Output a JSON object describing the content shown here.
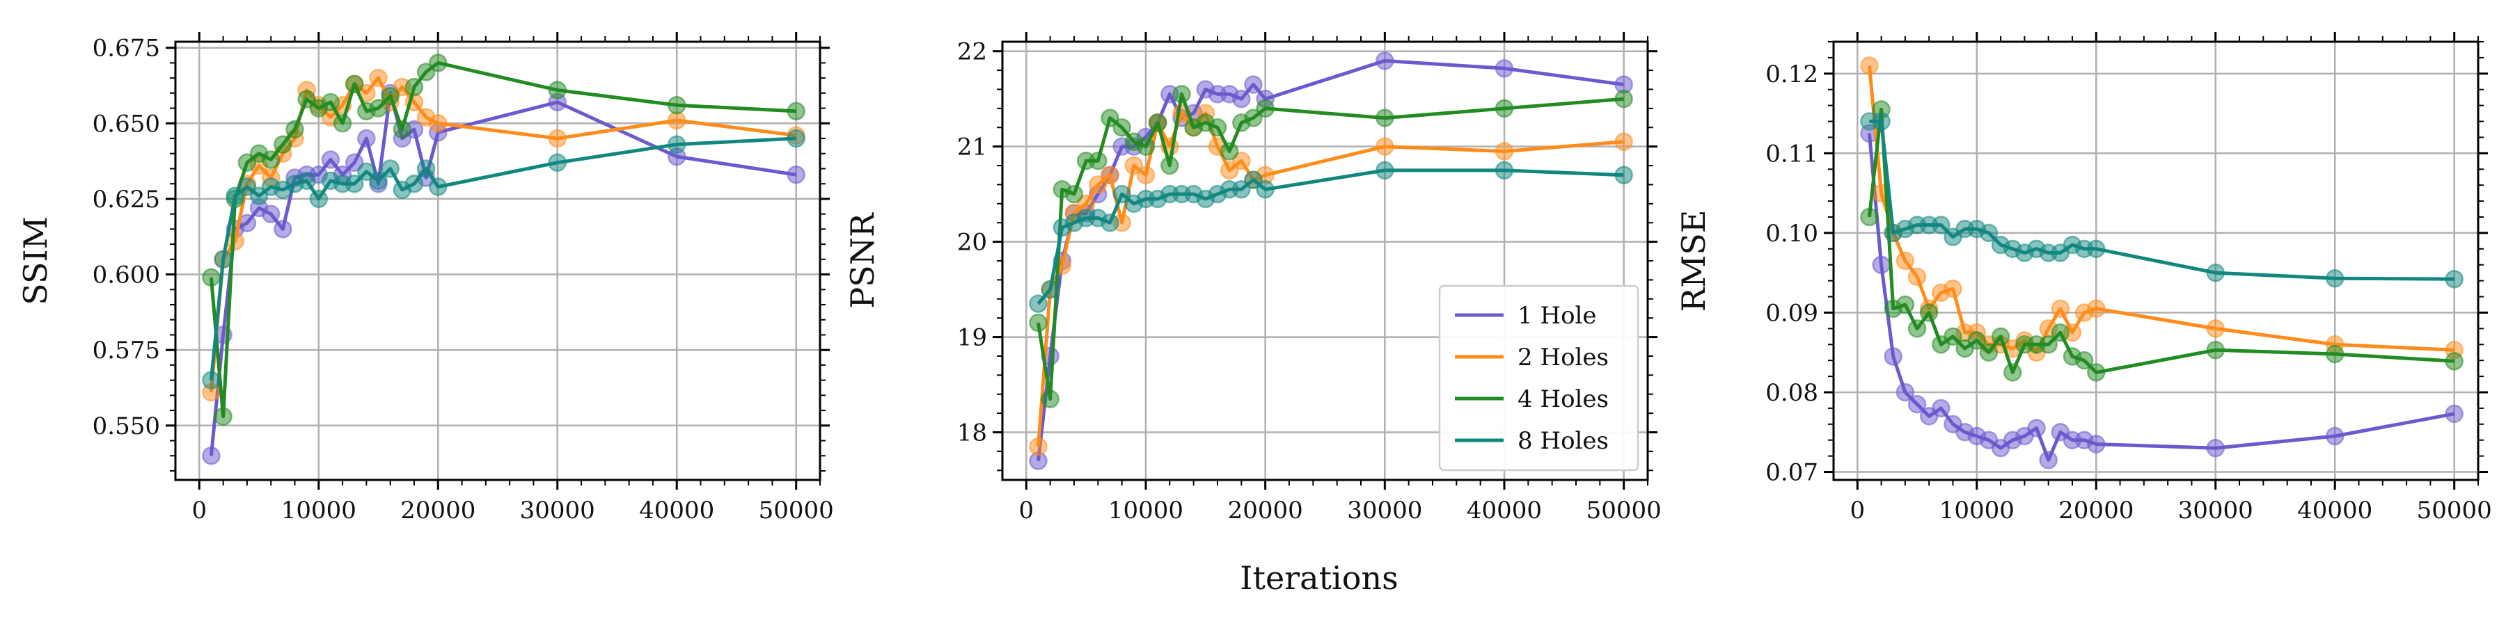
{
  "figure": {
    "shared_xlabel": "Iterations"
  },
  "colors": {
    "1 Hole": "#6a5acd",
    "2 Holes": "#ff8c1a",
    "4 Holes": "#228b22",
    "8 Holes": "#11877f"
  },
  "chart_data": [
    {
      "type": "line",
      "ylabel": "SSIM",
      "xlabel": "",
      "xlim": [
        -2000,
        52000
      ],
      "ylim": [
        0.532,
        0.677
      ],
      "x_ticks": [
        0,
        10000,
        20000,
        30000,
        40000,
        50000
      ],
      "y_ticks": [
        0.55,
        0.575,
        0.6,
        0.625,
        0.65,
        0.675
      ],
      "y_tick_labels": [
        "0.550",
        "0.575",
        "0.600",
        "0.625",
        "0.650",
        "0.675"
      ],
      "grid": true,
      "legend": null,
      "x": [
        1000,
        2000,
        3000,
        4000,
        5000,
        6000,
        7000,
        8000,
        9000,
        10000,
        11000,
        12000,
        13000,
        14000,
        15000,
        16000,
        17000,
        18000,
        19000,
        20000,
        30000,
        40000,
        50000
      ],
      "series": [
        {
          "name": "1 Hole",
          "values": [
            0.54,
            0.58,
            0.615,
            0.617,
            0.622,
            0.62,
            0.615,
            0.632,
            0.633,
            0.633,
            0.638,
            0.633,
            0.637,
            0.645,
            0.63,
            0.66,
            0.645,
            0.648,
            0.632,
            0.647,
            0.657,
            0.639,
            0.633
          ]
        },
        {
          "name": "2 Holes",
          "values": [
            0.561,
            0.605,
            0.611,
            0.63,
            0.636,
            0.632,
            0.64,
            0.645,
            0.661,
            0.656,
            0.652,
            0.656,
            0.663,
            0.66,
            0.665,
            0.657,
            0.662,
            0.657,
            0.652,
            0.65,
            0.645,
            0.651,
            0.646
          ]
        },
        {
          "name": "4 Holes",
          "values": [
            0.599,
            0.553,
            0.625,
            0.637,
            0.64,
            0.638,
            0.643,
            0.648,
            0.658,
            0.655,
            0.657,
            0.65,
            0.663,
            0.654,
            0.655,
            0.659,
            0.648,
            0.662,
            0.667,
            0.67,
            0.661,
            0.656,
            0.654
          ]
        },
        {
          "name": "8 Holes",
          "values": [
            0.565,
            0.605,
            0.626,
            0.629,
            0.626,
            0.629,
            0.628,
            0.63,
            0.631,
            0.625,
            0.631,
            0.63,
            0.63,
            0.634,
            0.631,
            0.635,
            0.628,
            0.63,
            0.635,
            0.629,
            0.637,
            0.643,
            0.645
          ]
        }
      ]
    },
    {
      "type": "line",
      "ylabel": "PSNR",
      "xlabel": "",
      "xlim": [
        -2000,
        52000
      ],
      "ylim": [
        17.5,
        22.1
      ],
      "x_ticks": [
        0,
        10000,
        20000,
        30000,
        40000,
        50000
      ],
      "y_ticks": [
        18,
        19,
        20,
        21,
        22
      ],
      "y_tick_labels": [
        "18",
        "19",
        "20",
        "21",
        "22"
      ],
      "grid": true,
      "legend": "bottom-right",
      "x": [
        1000,
        2000,
        3000,
        4000,
        5000,
        6000,
        7000,
        8000,
        9000,
        10000,
        11000,
        12000,
        13000,
        14000,
        15000,
        16000,
        17000,
        18000,
        19000,
        20000,
        30000,
        40000,
        50000
      ],
      "series": [
        {
          "name": "1 Hole",
          "values": [
            17.7,
            18.8,
            19.8,
            20.3,
            20.3,
            20.5,
            20.7,
            21.0,
            21.0,
            21.1,
            21.25,
            21.55,
            21.3,
            21.35,
            21.6,
            21.55,
            21.55,
            21.5,
            21.65,
            21.5,
            21.9,
            21.82,
            21.65
          ]
        },
        {
          "name": "2 Holes",
          "values": [
            17.85,
            19.5,
            19.75,
            20.3,
            20.4,
            20.6,
            20.7,
            20.2,
            20.8,
            20.7,
            21.25,
            21.0,
            21.35,
            21.2,
            21.35,
            21.0,
            20.75,
            20.85,
            20.65,
            20.7,
            21.0,
            20.95,
            21.05
          ]
        },
        {
          "name": "4 Holes",
          "values": [
            19.15,
            18.35,
            20.55,
            20.5,
            20.85,
            20.85,
            21.3,
            21.2,
            21.05,
            21.0,
            21.25,
            20.8,
            21.55,
            21.2,
            21.25,
            21.2,
            20.95,
            21.25,
            21.3,
            21.4,
            21.3,
            21.4,
            21.5
          ]
        },
        {
          "name": "8 Holes",
          "values": [
            19.35,
            19.5,
            20.15,
            20.2,
            20.25,
            20.25,
            20.2,
            20.5,
            20.4,
            20.45,
            20.45,
            20.5,
            20.5,
            20.5,
            20.45,
            20.5,
            20.55,
            20.55,
            20.65,
            20.55,
            20.75,
            20.75,
            20.7
          ]
        }
      ]
    },
    {
      "type": "line",
      "ylabel": "RMSE",
      "xlabel": "",
      "xlim": [
        -2000,
        52000
      ],
      "ylim": [
        0.069,
        0.124
      ],
      "x_ticks": [
        0,
        10000,
        20000,
        30000,
        40000,
        50000
      ],
      "y_ticks": [
        0.07,
        0.08,
        0.09,
        0.1,
        0.11,
        0.12
      ],
      "y_tick_labels": [
        "0.07",
        "0.08",
        "0.09",
        "0.10",
        "0.11",
        "0.12"
      ],
      "grid": true,
      "legend": null,
      "x": [
        1000,
        2000,
        3000,
        4000,
        5000,
        6000,
        7000,
        8000,
        9000,
        10000,
        11000,
        12000,
        13000,
        14000,
        15000,
        16000,
        17000,
        18000,
        19000,
        20000,
        30000,
        40000,
        50000
      ],
      "series": [
        {
          "name": "1 Hole",
          "values": [
            0.1125,
            0.096,
            0.0845,
            0.08,
            0.0785,
            0.077,
            0.078,
            0.076,
            0.075,
            0.0745,
            0.074,
            0.073,
            0.074,
            0.0745,
            0.0755,
            0.0715,
            0.075,
            0.074,
            0.074,
            0.0735,
            0.073,
            0.0745,
            0.0773
          ]
        },
        {
          "name": "2 Holes",
          "values": [
            0.121,
            0.105,
            0.1,
            0.0965,
            0.0945,
            0.0905,
            0.0925,
            0.093,
            0.0875,
            0.0875,
            0.086,
            0.086,
            0.0855,
            0.0865,
            0.085,
            0.088,
            0.0905,
            0.0875,
            0.09,
            0.0905,
            0.088,
            0.086,
            0.0853
          ]
        },
        {
          "name": "4 Holes",
          "values": [
            0.102,
            0.1155,
            0.0905,
            0.091,
            0.088,
            0.09,
            0.086,
            0.087,
            0.0855,
            0.0865,
            0.085,
            0.087,
            0.0825,
            0.086,
            0.086,
            0.086,
            0.0875,
            0.0845,
            0.084,
            0.0825,
            0.0853,
            0.0848,
            0.0839
          ]
        },
        {
          "name": "8 Holes",
          "values": [
            0.114,
            0.114,
            0.1,
            0.1005,
            0.101,
            0.101,
            0.101,
            0.0995,
            0.1005,
            0.1005,
            0.1,
            0.0985,
            0.098,
            0.0975,
            0.098,
            0.0975,
            0.0975,
            0.0985,
            0.098,
            0.098,
            0.095,
            0.0943,
            0.0942
          ]
        }
      ]
    }
  ]
}
